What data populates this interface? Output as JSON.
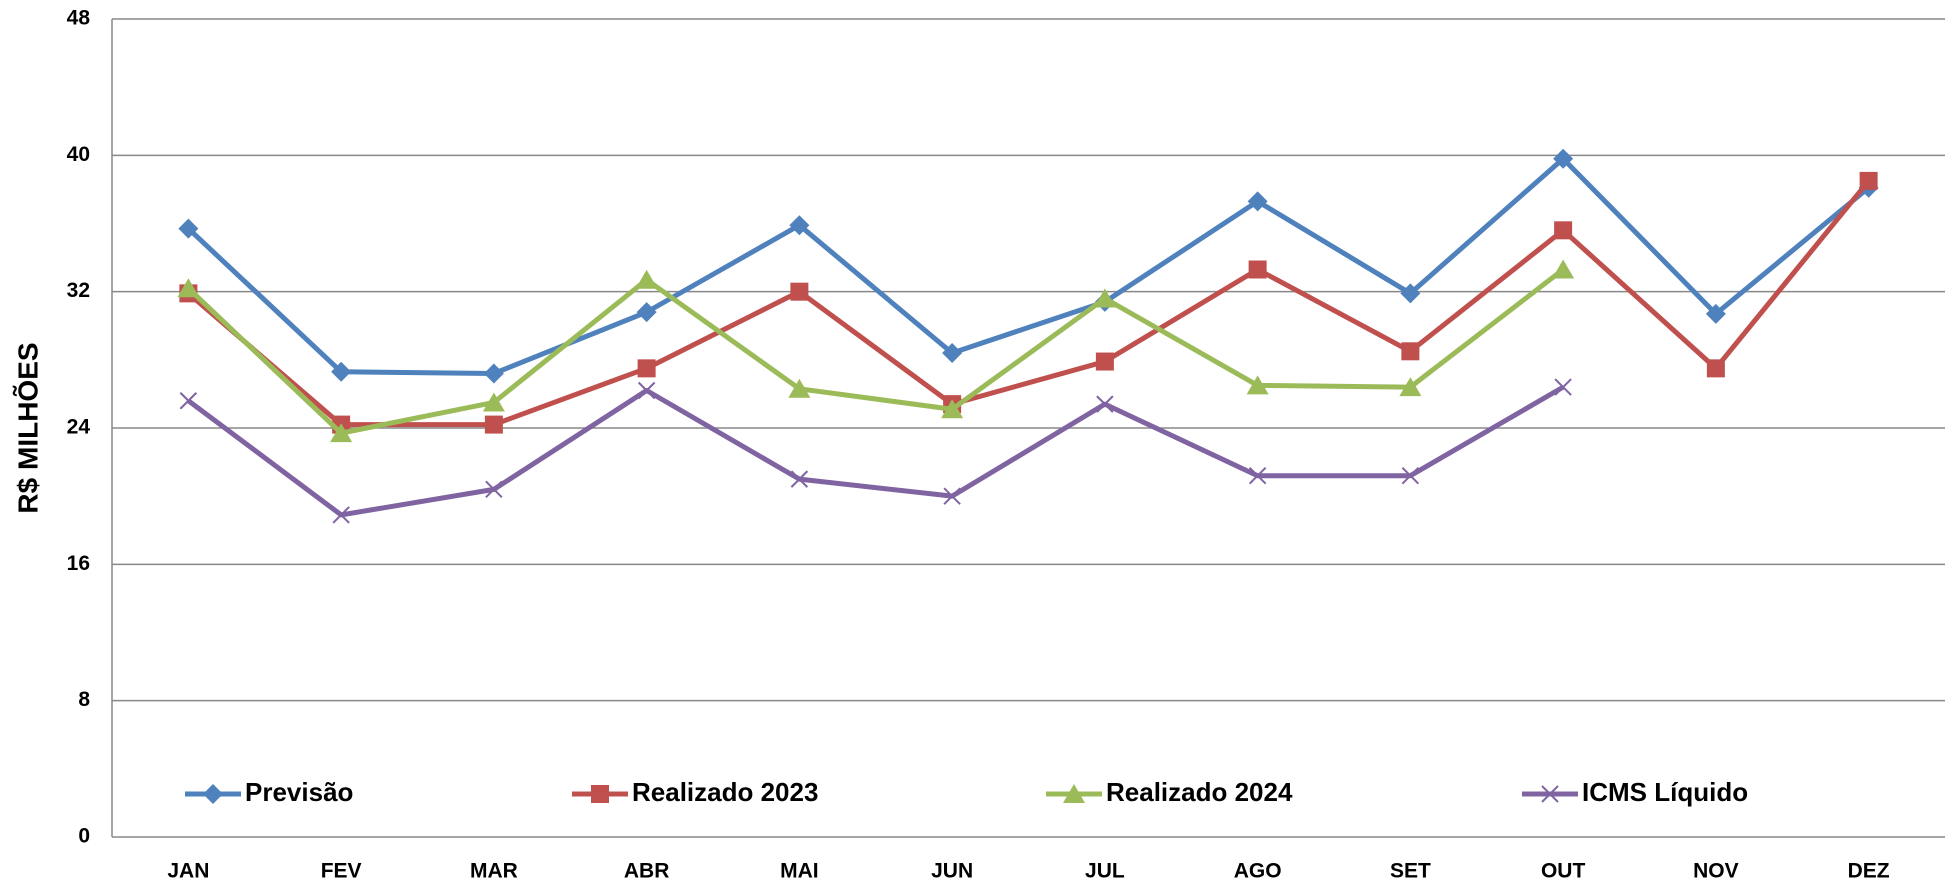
{
  "chart_data": {
    "type": "line",
    "y_label": "R$ MILHÕES",
    "categories": [
      "JAN",
      "FEV",
      "MAR",
      "ABR",
      "MAI",
      "JUN",
      "JUL",
      "AGO",
      "SET",
      "OUT",
      "NOV",
      "DEZ"
    ],
    "series": [
      {
        "name": "Previsão",
        "color": "#4f81bd",
        "marker": "diamond",
        "values": [
          35.7,
          27.3,
          27.2,
          30.8,
          35.9,
          28.4,
          31.4,
          37.3,
          31.9,
          39.8,
          30.7,
          38.1
        ]
      },
      {
        "name": "Realizado 2023",
        "color": "#c0504d",
        "marker": "square",
        "values": [
          31.9,
          24.2,
          24.2,
          27.5,
          32.0,
          25.4,
          27.9,
          33.3,
          28.5,
          35.6,
          27.5,
          38.5
        ]
      },
      {
        "name": "Realizado 2024",
        "color": "#9bbb59",
        "marker": "triangle",
        "values": [
          32.2,
          23.7,
          25.5,
          32.7,
          26.3,
          25.1,
          31.6,
          26.5,
          26.4,
          33.3,
          null,
          null
        ]
      },
      {
        "name": "ICMS Líquido",
        "color": "#8064a2",
        "marker": "x",
        "values": [
          25.6,
          18.9,
          20.4,
          26.2,
          21.0,
          20.0,
          25.4,
          21.2,
          21.2,
          26.4,
          null,
          null
        ]
      }
    ],
    "ylim": [
      0,
      48
    ],
    "yticks": [
      0,
      8,
      16,
      24,
      32,
      40,
      48
    ],
    "grid": true,
    "legend_position": "bottom"
  }
}
